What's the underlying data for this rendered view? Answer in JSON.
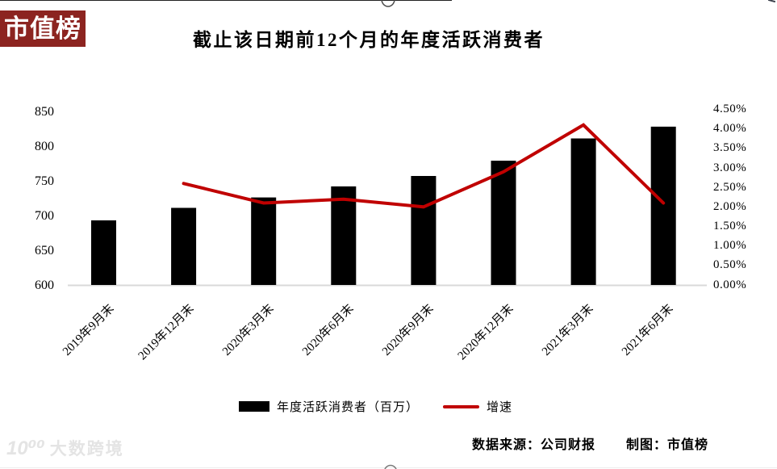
{
  "logo": {
    "text": "市值榜",
    "bg_color": "#8c2420",
    "text_color": "#ffffff"
  },
  "header": {
    "title": "截止该日期前12个月的年度活跃消费者"
  },
  "chart_data": {
    "type": "bar",
    "categories": [
      "2019年9月末",
      "2019年12月末",
      "2020年3月末",
      "2020年6月末",
      "2020年9月末",
      "2020年12月末",
      "2021年3月末",
      "2021年6月末"
    ],
    "series": [
      {
        "name": "年度活跃消费者（百万）",
        "type": "bar",
        "axis": "left",
        "color": "#000000",
        "values": [
          693,
          711,
          726,
          742,
          757,
          779,
          811,
          828
        ]
      },
      {
        "name": "增速",
        "type": "line",
        "axis": "right",
        "color": "#c00000",
        "values": [
          null,
          2.6,
          2.1,
          2.2,
          2.0,
          2.9,
          4.1,
          2.1
        ]
      }
    ],
    "title": "截止该日期前12个月的年度活跃消费者",
    "xlabel": "",
    "ylabel": "",
    "left_axis": {
      "min": 600,
      "max": 850,
      "step": 50,
      "ticks": [
        "600",
        "650",
        "700",
        "750",
        "800",
        "850"
      ]
    },
    "right_axis": {
      "min": 0.0,
      "max": 4.5,
      "step": 0.5,
      "ticks": [
        "0.00%",
        "0.50%",
        "1.00%",
        "1.50%",
        "2.00%",
        "2.50%",
        "3.00%",
        "3.50%",
        "4.00%",
        "4.50%"
      ]
    },
    "grid": false,
    "legend_position": "bottom"
  },
  "legend": {
    "items": [
      {
        "label": "年度活跃消费者（百万）",
        "color": "#000000",
        "shape": "rect"
      },
      {
        "label": "增速",
        "color": "#c00000",
        "shape": "line"
      }
    ]
  },
  "footer": {
    "source": "数据来源：公司财报",
    "credit": "制图：市值榜"
  },
  "watermark": {
    "icon_text": "10⁰⁰",
    "text": "大数跨境"
  }
}
